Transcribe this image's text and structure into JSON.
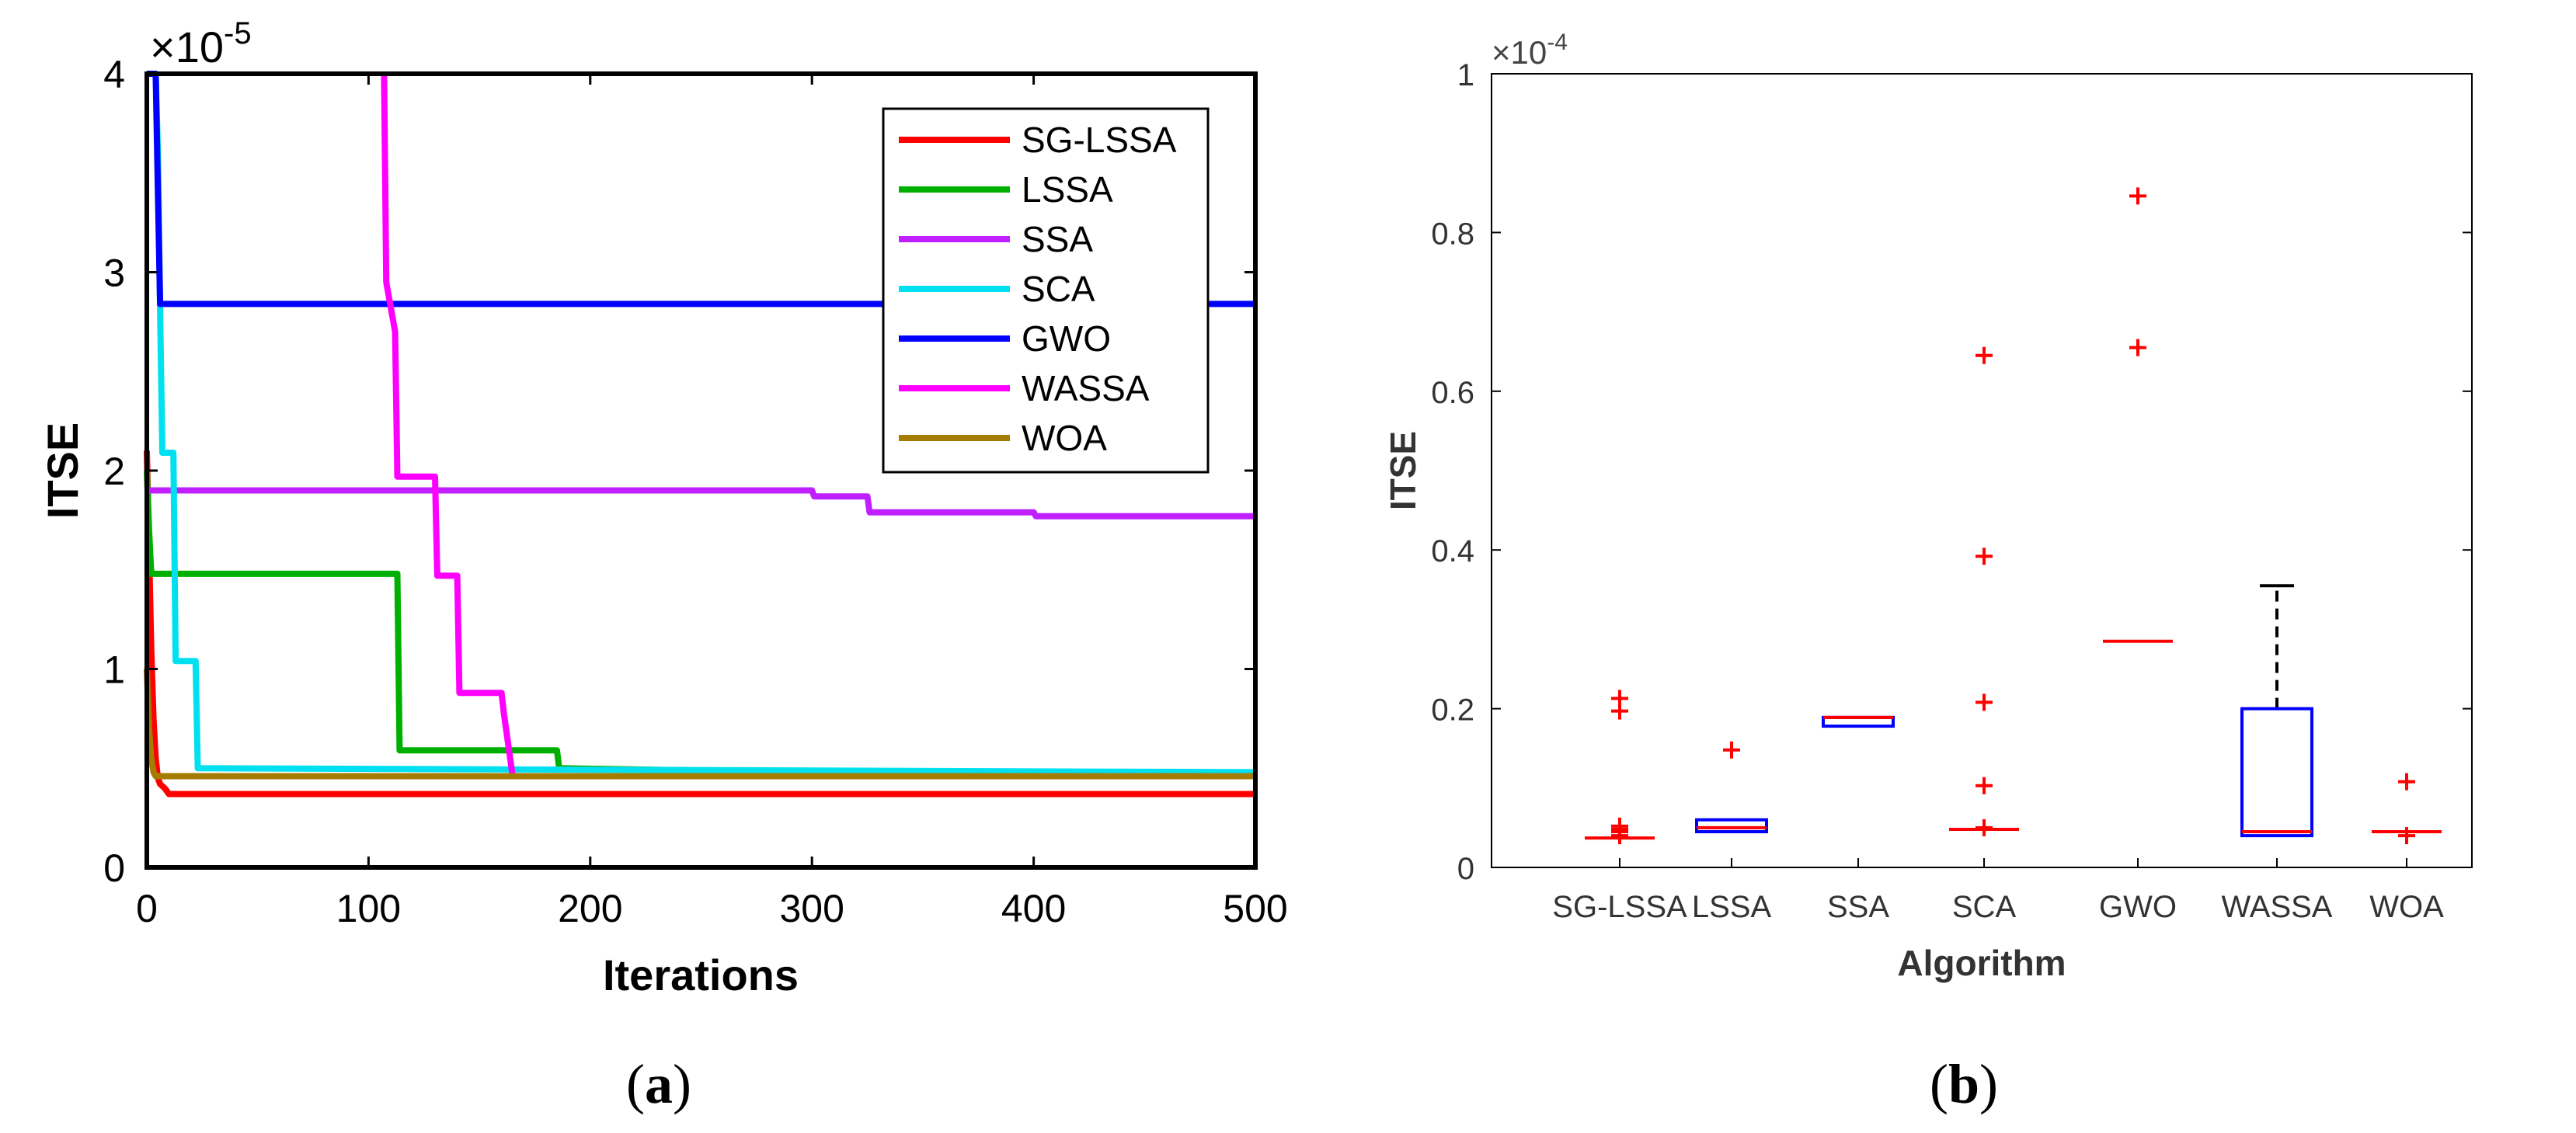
{
  "figure_captions": {
    "left": "(a)",
    "right": "(b)"
  },
  "chart_data": [
    {
      "type": "line",
      "title": "",
      "xlabel": "Iterations",
      "ylabel": "ITSE",
      "y_exponent_label": "×10",
      "y_exponent": "-5",
      "xlim": [
        0,
        500
      ],
      "ylim": [
        0,
        4
      ],
      "xticks": [
        "0",
        "100",
        "200",
        "300",
        "400",
        "500"
      ],
      "yticks": [
        "0",
        "1",
        "2",
        "3",
        "4"
      ],
      "legend": "top-right",
      "series": [
        {
          "name": "SG-LSSA",
          "color": "#ff0000",
          "x": [
            0,
            1,
            2,
            3,
            4,
            5,
            6,
            8,
            10,
            500
          ],
          "y": [
            2.1,
            1.6,
            1.1,
            0.75,
            0.55,
            0.45,
            0.42,
            0.4,
            0.37,
            0.37
          ]
        },
        {
          "name": "LSSA",
          "color": "#00b000",
          "x": [
            0,
            1,
            2,
            3,
            4,
            5,
            6,
            8,
            10,
            113,
            114,
            185,
            186,
            300,
            500
          ],
          "y": [
            2.0,
            1.7,
            1.48,
            1.48,
            1.48,
            1.48,
            1.48,
            1.48,
            1.48,
            1.48,
            0.59,
            0.59,
            0.5,
            0.48,
            0.46
          ]
        },
        {
          "name": "SSA",
          "color": "#c020ff",
          "x": [
            0,
            1,
            2,
            3,
            4,
            5,
            6,
            300,
            301,
            325,
            326,
            400,
            401,
            500
          ],
          "y": [
            1.9,
            1.9,
            1.9,
            1.9,
            1.9,
            1.9,
            1.9,
            1.9,
            1.87,
            1.87,
            1.79,
            1.79,
            1.77,
            1.77
          ]
        },
        {
          "name": "SCA",
          "color": "#00e0f0",
          "x": [
            0,
            1,
            2,
            3,
            4,
            5,
            6,
            7,
            8,
            12,
            13,
            22,
            23,
            500
          ],
          "y": [
            4.0,
            4.0,
            4.0,
            4.0,
            4.0,
            3.6,
            2.8,
            2.09,
            2.09,
            2.09,
            1.04,
            1.04,
            0.5,
            0.48
          ]
        },
        {
          "name": "GWO",
          "color": "#0000ff",
          "x": [
            0,
            1,
            2,
            3,
            4,
            5,
            6,
            500
          ],
          "y": [
            4.0,
            4.0,
            4.0,
            4.0,
            4.0,
            3.4,
            2.84,
            2.84
          ]
        },
        {
          "name": "WASSA",
          "color": "#ff00ff",
          "x": [
            107,
            108,
            112,
            113,
            130,
            131,
            140,
            141,
            160,
            161,
            165,
            500
          ],
          "y": [
            4.0,
            2.95,
            2.7,
            1.97,
            1.97,
            1.47,
            1.47,
            0.88,
            0.88,
            0.78,
            0.46,
            0.46
          ]
        },
        {
          "name": "WOA",
          "color": "#a67c00",
          "x": [
            0,
            1,
            2,
            3,
            4,
            5,
            6,
            500
          ],
          "y": [
            1.0,
            0.7,
            0.55,
            0.48,
            0.46,
            0.46,
            0.46,
            0.46
          ]
        }
      ]
    },
    {
      "type": "box",
      "title": "",
      "xlabel": "Algorithm",
      "ylabel": "ITSE",
      "y_exponent_label": "×10",
      "y_exponent": "-4",
      "ylim": [
        0,
        1
      ],
      "yticks": [
        "0",
        "0.2",
        "0.4",
        "0.6",
        "0.8",
        "1"
      ],
      "categories": [
        "SG-LSSA",
        "LSSA",
        "SSA",
        "SCA",
        "GWO",
        "WASSA",
        "WOA"
      ],
      "boxes": [
        {
          "name": "SG-LSSA",
          "q1": 0.037,
          "median": 0.037,
          "q3": 0.037,
          "whisker_low": 0.037,
          "whisker_high": 0.037,
          "outliers": [
            0.213,
            0.197,
            0.052,
            0.045,
            0.048,
            0.04
          ]
        },
        {
          "name": "LSSA",
          "q1": 0.045,
          "median": 0.05,
          "q3": 0.06,
          "whisker_low": 0.045,
          "whisker_high": 0.06,
          "outliers": [
            0.148
          ]
        },
        {
          "name": "SSA",
          "q1": 0.178,
          "median": 0.189,
          "q3": 0.189,
          "whisker_low": 0.178,
          "whisker_high": 0.189,
          "outliers": []
        },
        {
          "name": "SCA",
          "q1": 0.048,
          "median": 0.048,
          "q3": 0.048,
          "whisker_low": 0.048,
          "whisker_high": 0.048,
          "outliers": [
            0.645,
            0.392,
            0.208,
            0.103,
            0.05
          ]
        },
        {
          "name": "GWO",
          "q1": 0.285,
          "median": 0.285,
          "q3": 0.285,
          "whisker_low": 0.285,
          "whisker_high": 0.285,
          "outliers": [
            0.846,
            0.655
          ]
        },
        {
          "name": "WASSA",
          "q1": 0.04,
          "median": 0.045,
          "q3": 0.2,
          "whisker_low": 0.04,
          "whisker_high": 0.355,
          "outliers": []
        },
        {
          "name": "WOA",
          "q1": 0.045,
          "median": 0.045,
          "q3": 0.045,
          "whisker_low": 0.045,
          "whisker_high": 0.045,
          "outliers": [
            0.108,
            0.04
          ]
        }
      ]
    }
  ]
}
